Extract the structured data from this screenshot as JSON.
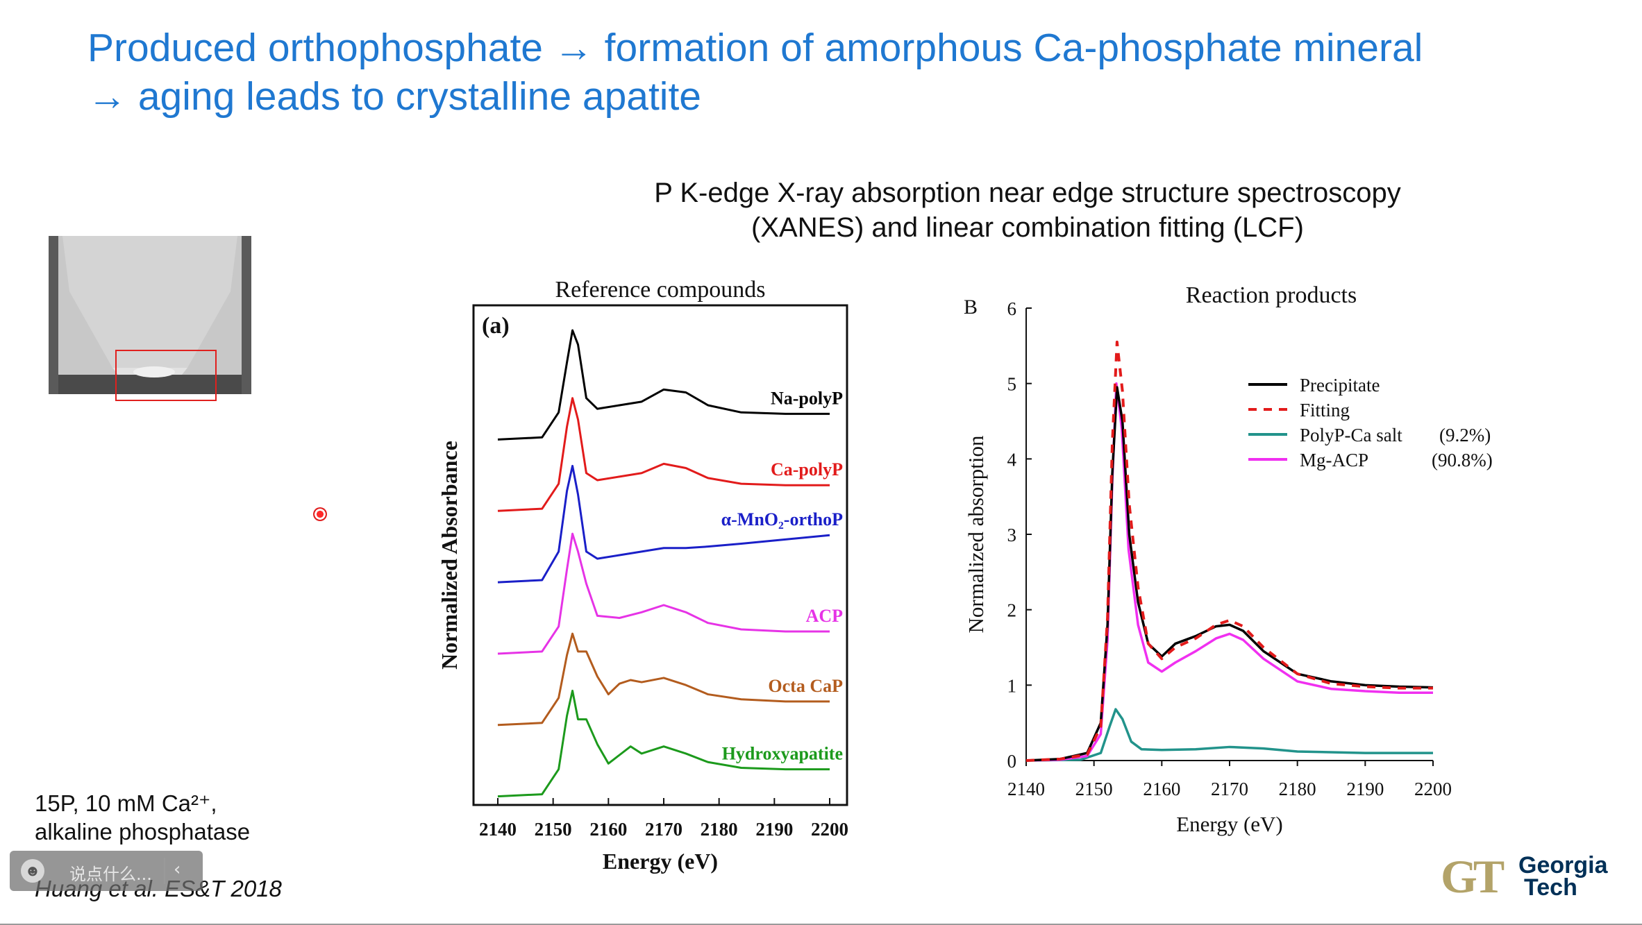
{
  "slide": {
    "title_line1": "Produced orthophosphate → formation of amorphous Ca-phosphate mineral",
    "title_line2": "→ aging leads to crystalline apatite",
    "subtitle_line1": "P K-edge X-ray absorption near edge structure spectroscopy",
    "subtitle_line2": "(XANES) and linear combination fitting (LCF)",
    "note_line1": "15P, 10 mM Ca²⁺,",
    "note_line2": "alkaline phosphatase",
    "citation": "Huang et al. ES&T 2018",
    "logo_line1": "Georgia",
    "logo_line2": "Tech",
    "logo_mark": "GT",
    "title_color": "#1f78d1"
  },
  "danmaku": {
    "placeholder": "说点什么...",
    "face_icon": "smiley-icon",
    "collapse_icon": "chevron-left-icon"
  },
  "chart_data": [
    {
      "type": "line",
      "title": "Reference compounds",
      "panel_label": "(a)",
      "xlabel": "Energy (eV)",
      "ylabel": "Normalized Absorbance",
      "xlim": [
        2140,
        2200
      ],
      "xticks": [
        2140,
        2150,
        2160,
        2170,
        2180,
        2190,
        2200
      ],
      "yticks_shown": false,
      "series": [
        {
          "name": "Na-polyP",
          "color": "#000000",
          "offset": 5.0,
          "x": [
            2140,
            2148,
            2151,
            2152.5,
            2153.5,
            2154.5,
            2156,
            2158,
            2162,
            2166,
            2170,
            2174,
            2178,
            2184,
            2192,
            2200
          ],
          "y": [
            0.02,
            0.05,
            0.4,
            1.1,
            1.55,
            1.35,
            0.6,
            0.45,
            0.5,
            0.55,
            0.72,
            0.68,
            0.5,
            0.4,
            0.38,
            0.38
          ]
        },
        {
          "name": "Ca-polyP",
          "color": "#e21b1b",
          "offset": 4.0,
          "x": [
            2140,
            2148,
            2151,
            2152.5,
            2153.5,
            2154.5,
            2156,
            2158,
            2162,
            2166,
            2170,
            2174,
            2178,
            2184,
            2192,
            2200
          ],
          "y": [
            0.02,
            0.05,
            0.4,
            1.2,
            1.6,
            1.3,
            0.55,
            0.45,
            0.5,
            0.55,
            0.68,
            0.62,
            0.48,
            0.4,
            0.38,
            0.38
          ]
        },
        {
          "name": "α-MnO₂-orthoP",
          "color": "#1a1fc8",
          "offset": 3.0,
          "x": [
            2140,
            2148,
            2151,
            2152.5,
            2153.5,
            2154.5,
            2156,
            2158,
            2162,
            2166,
            2170,
            2174,
            2178,
            2184,
            2192,
            2200
          ],
          "y": [
            0.02,
            0.05,
            0.45,
            1.3,
            1.65,
            1.25,
            0.45,
            0.35,
            0.4,
            0.45,
            0.5,
            0.5,
            0.52,
            0.56,
            0.62,
            0.68
          ]
        },
        {
          "name": "ACP",
          "color": "#e633e6",
          "offset": 2.0,
          "x": [
            2140,
            2148,
            2151,
            2152.5,
            2153.5,
            2154.5,
            2156,
            2158,
            2162,
            2166,
            2170,
            2174,
            2178,
            2184,
            2192,
            2200
          ],
          "y": [
            0.02,
            0.05,
            0.4,
            1.2,
            1.7,
            1.45,
            1.0,
            0.55,
            0.52,
            0.6,
            0.7,
            0.6,
            0.45,
            0.36,
            0.33,
            0.33
          ]
        },
        {
          "name": "Octa CaP",
          "color": "#b35c1e",
          "offset": 1.0,
          "x": [
            2140,
            2148,
            2151,
            2152.5,
            2153.5,
            2154.5,
            2156,
            2158,
            2160,
            2162,
            2164,
            2166,
            2170,
            2174,
            2178,
            2184,
            2192,
            2200
          ],
          "y": [
            0.02,
            0.05,
            0.4,
            1.0,
            1.3,
            1.05,
            1.05,
            0.7,
            0.45,
            0.6,
            0.65,
            0.62,
            0.68,
            0.58,
            0.45,
            0.38,
            0.35,
            0.35
          ]
        },
        {
          "name": "Hydroxyapatite",
          "color": "#1c9a1c",
          "offset": 0.0,
          "x": [
            2140,
            2148,
            2151,
            2152.5,
            2153.5,
            2154.5,
            2156,
            2158,
            2160,
            2162,
            2164,
            2166,
            2170,
            2174,
            2178,
            2184,
            2192,
            2200
          ],
          "y": [
            0.02,
            0.05,
            0.4,
            1.15,
            1.5,
            1.1,
            1.1,
            0.75,
            0.48,
            0.6,
            0.72,
            0.62,
            0.72,
            0.62,
            0.5,
            0.42,
            0.4,
            0.4
          ]
        }
      ]
    },
    {
      "type": "line",
      "title": "Reaction products",
      "panel_label": "B",
      "xlabel": "Energy (eV)",
      "ylabel": "Normalized absorption",
      "xlim": [
        2140,
        2200
      ],
      "ylim": [
        0,
        6
      ],
      "xticks": [
        2140,
        2150,
        2160,
        2170,
        2180,
        2190,
        2200
      ],
      "yticks": [
        0,
        1,
        2,
        3,
        4,
        5,
        6
      ],
      "legend_position": "top-right",
      "series": [
        {
          "name": "Precipitate",
          "color": "#000000",
          "dash": false,
          "pct": "",
          "x": [
            2140,
            2145,
            2149,
            2151,
            2152,
            2152.7,
            2153.4,
            2154.2,
            2155.2,
            2156.5,
            2158,
            2160,
            2162,
            2165,
            2168,
            2170,
            2172,
            2175,
            2180,
            2185,
            2190,
            2195,
            2200
          ],
          "y": [
            0.0,
            0.02,
            0.1,
            0.5,
            1.8,
            3.8,
            4.95,
            4.5,
            3.0,
            2.1,
            1.55,
            1.38,
            1.55,
            1.65,
            1.78,
            1.8,
            1.72,
            1.45,
            1.15,
            1.05,
            1.0,
            0.98,
            0.97
          ]
        },
        {
          "name": "Fitting",
          "color": "#e21b1b",
          "dash": true,
          "pct": "",
          "x": [
            2140,
            2145,
            2149,
            2151,
            2152,
            2152.7,
            2153.4,
            2154.2,
            2155.2,
            2156.5,
            2158,
            2160,
            2162,
            2165,
            2168,
            2170,
            2172,
            2175,
            2180,
            2185,
            2190,
            2195,
            2200
          ],
          "y": [
            0.0,
            0.02,
            0.08,
            0.45,
            1.9,
            4.2,
            5.55,
            4.9,
            3.4,
            2.3,
            1.55,
            1.35,
            1.5,
            1.62,
            1.8,
            1.86,
            1.78,
            1.5,
            1.15,
            1.02,
            0.98,
            0.96,
            0.96
          ]
        },
        {
          "name": "PolyP-Ca salt",
          "color": "#22938b",
          "dash": false,
          "pct": "(9.2%)",
          "x": [
            2140,
            2148,
            2151,
            2152.3,
            2153.2,
            2154.2,
            2155.5,
            2157,
            2160,
            2165,
            2170,
            2175,
            2180,
            2190,
            2200
          ],
          "y": [
            0.0,
            0.01,
            0.1,
            0.45,
            0.68,
            0.55,
            0.25,
            0.15,
            0.14,
            0.15,
            0.18,
            0.16,
            0.12,
            0.1,
            0.1
          ]
        },
        {
          "name": "Mg-ACP",
          "color": "#f030f0",
          "dash": false,
          "pct": "(90.8%)",
          "x": [
            2140,
            2145,
            2149,
            2151,
            2152,
            2152.7,
            2153.3,
            2154.1,
            2155.1,
            2156.5,
            2158,
            2160,
            2162,
            2165,
            2168,
            2170,
            2172,
            2175,
            2180,
            2185,
            2190,
            2195,
            2200
          ],
          "y": [
            0.0,
            0.01,
            0.06,
            0.35,
            1.6,
            3.7,
            5.0,
            4.4,
            2.8,
            1.8,
            1.3,
            1.18,
            1.3,
            1.45,
            1.62,
            1.68,
            1.6,
            1.35,
            1.05,
            0.95,
            0.92,
            0.9,
            0.9
          ]
        }
      ]
    }
  ]
}
